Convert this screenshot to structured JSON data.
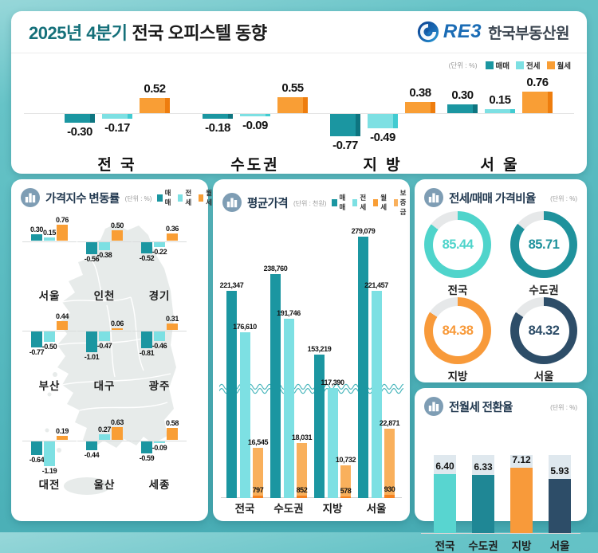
{
  "header": {
    "title_period": "2025년 4분기",
    "title_main": "전국 오피스텔 동향",
    "logo_brand": "RE3",
    "logo_org": "한국부동산원"
  },
  "units": {
    "percent": "(단위 : %)",
    "thousand_won": "(단위 : 천원)"
  },
  "colors": {
    "sale": "#1b96a1",
    "sale_edge": "#0e7580",
    "jeonse": "#7de0e3",
    "jeonse_edge": "#41cbd1",
    "wolse": "#f99e35",
    "wolse_edge": "#ee7d0e",
    "wolse_dark": "#f58220",
    "deposit": "#f9b05c",
    "ratio": [
      "#4fd4cb",
      "#1f929c",
      "#f89a3a",
      "#2d4d68"
    ],
    "conv": [
      "#58d5d0",
      "#1f8795",
      "#f89a3a",
      "#2d4d68"
    ],
    "donut_rest": "#e6e8e9"
  },
  "chart_data": [
    {
      "id": "trend",
      "type": "bar",
      "title": "",
      "unit": "(단위 : %)",
      "categories": [
        "전 국",
        "수도권",
        "지 방",
        "서 울"
      ],
      "series": [
        {
          "name": "매매",
          "values": [
            -0.3,
            -0.18,
            -0.77,
            0.3
          ]
        },
        {
          "name": "전세",
          "values": [
            -0.17,
            -0.09,
            -0.49,
            0.15
          ]
        },
        {
          "name": "월세",
          "values": [
            0.52,
            0.55,
            0.38,
            0.76
          ]
        }
      ],
      "legend_position": "top-right",
      "grid": false
    },
    {
      "id": "price_index",
      "type": "bar",
      "title": "가격지수 변동률",
      "unit": "(단위 : %)",
      "categories": [
        "서울",
        "인천",
        "경기",
        "부산",
        "대구",
        "광주",
        "대전",
        "울산",
        "세종"
      ],
      "series": [
        {
          "name": "매매",
          "values": [
            0.3,
            -0.56,
            -0.52,
            -0.77,
            -1.01,
            -0.81,
            -0.64,
            -0.44,
            -0.59
          ]
        },
        {
          "name": "전세",
          "values": [
            0.15,
            -0.38,
            -0.22,
            -0.5,
            -0.47,
            -0.46,
            -1.19,
            0.27,
            -0.09
          ]
        },
        {
          "name": "월세",
          "values": [
            0.76,
            0.5,
            0.36,
            0.44,
            0.06,
            0.31,
            0.19,
            0.63,
            0.58
          ]
        }
      ],
      "legend_position": "top-right",
      "layout": "map-grid-3x3"
    },
    {
      "id": "avg_price",
      "type": "bar",
      "title": "평균가격",
      "unit": "(단위 : 천원)",
      "categories": [
        "전국",
        "수도권",
        "지방",
        "서울"
      ],
      "series": [
        {
          "name": "매매",
          "values": [
            221347,
            238760,
            153219,
            279079
          ]
        },
        {
          "name": "전세",
          "values": [
            176610,
            191746,
            117390,
            221457
          ]
        },
        {
          "name": "월세",
          "values": [
            797,
            852,
            578,
            930
          ]
        },
        {
          "name": "보증금",
          "values": [
            16545,
            18031,
            10732,
            22871
          ]
        }
      ],
      "axis_break": true,
      "legend_position": "top-right"
    },
    {
      "id": "jeonse_ratio",
      "type": "donut",
      "title": "전세/매매 가격비율",
      "unit": "(단위 : %)",
      "categories": [
        "전국",
        "수도권",
        "지방",
        "서울"
      ],
      "values": [
        85.44,
        85.71,
        84.38,
        84.32
      ]
    },
    {
      "id": "conversion",
      "type": "bar",
      "title": "전월세 전환율",
      "unit": "(단위 : %)",
      "categories": [
        "전국",
        "수도권",
        "지방",
        "서울"
      ],
      "values": [
        6.4,
        6.33,
        7.12,
        5.93
      ],
      "ylim": [
        0,
        8
      ]
    }
  ]
}
